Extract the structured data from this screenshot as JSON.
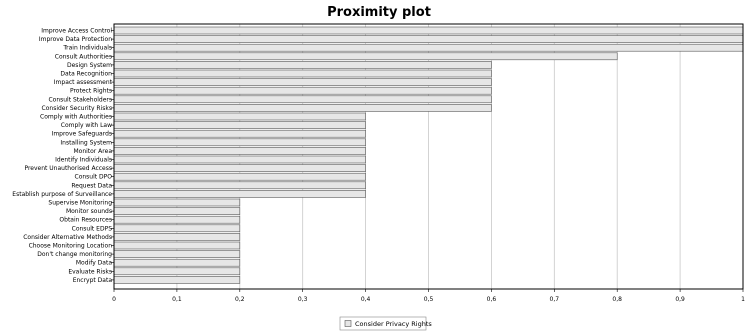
{
  "chart_data": {
    "type": "bar",
    "orientation": "horizontal",
    "title": "Proximity plot",
    "categories": [
      "Improve Access Control",
      "Improve Data Protection",
      "Train Individuals",
      "Consult Authorities",
      "Design System",
      "Data Recognition",
      "Impact assessment",
      "Protect Rights",
      "Consult Stakeholders",
      "Consider Security Risks",
      "Comply with Authorities",
      "Comply with Law",
      "Improve Safeguards",
      "Installing System",
      "Monitor Area",
      "Identify Individuals",
      "Prevent Unauthorised Access",
      "Consult DPO",
      "Request Data",
      "Establish purpose of Surveillance",
      "Supervise Monitoring",
      "Monitor sounds",
      "Obtain Resources",
      "Consult EDPS",
      "Consider Alternative Methods",
      "Choose Monitoring Location",
      "Don't change monitoring",
      "Modify Data",
      "Evaluate Risks",
      "Encrypt Data"
    ],
    "series": [
      {
        "name": "Consider Privacy Rights",
        "values": [
          1,
          1,
          1,
          0.8,
          0.6,
          0.6,
          0.6,
          0.6,
          0.6,
          0.6,
          0.4,
          0.4,
          0.4,
          0.4,
          0.4,
          0.4,
          0.4,
          0.4,
          0.4,
          0.4,
          0.2,
          0.2,
          0.2,
          0.2,
          0.2,
          0.2,
          0.2,
          0.2,
          0.2,
          0.2
        ]
      }
    ],
    "xlim": [
      0,
      1
    ],
    "xticks": [
      "0",
      "0,1",
      "0,2",
      "0,3",
      "0,4",
      "0,5",
      "0,6",
      "0,7",
      "0,8",
      "0,9",
      "1"
    ],
    "grid": true,
    "legend_position": "bottom-center",
    "colors": {
      "bar_fill": "#e6e6e6",
      "bar_stroke": "#555555",
      "grid": "#c8c8c8",
      "axis": "#000000"
    }
  }
}
